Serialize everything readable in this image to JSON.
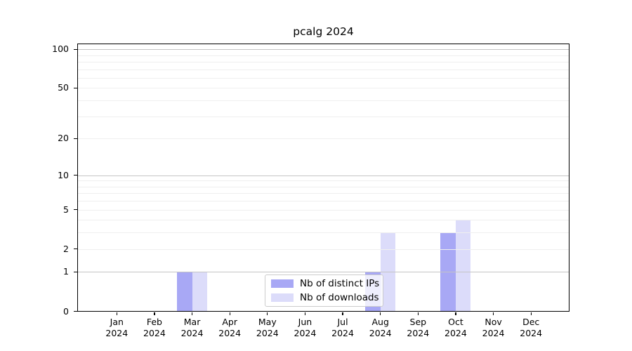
{
  "chart_data": {
    "type": "bar",
    "title": "pcalg 2024",
    "x_months": [
      "Jan",
      "Feb",
      "Mar",
      "Apr",
      "May",
      "Jun",
      "Jul",
      "Aug",
      "Sep",
      "Oct",
      "Nov",
      "Dec"
    ],
    "x_year": "2024",
    "y_ticks": [
      100,
      50,
      20,
      10,
      5,
      2,
      1,
      0
    ],
    "y_scale": "log1p",
    "ylim": [
      0,
      111
    ],
    "grid": true,
    "grid_major_values": [
      1,
      10,
      100
    ],
    "grid_minor_values": [
      2,
      3,
      4,
      5,
      6,
      7,
      8,
      9,
      20,
      30,
      40,
      50,
      60,
      70,
      80,
      90
    ],
    "series": [
      {
        "name": "Nb of distinct IPs",
        "color": "#a8a8f5",
        "values": [
          0,
          0,
          1,
          0,
          0,
          0,
          0,
          1,
          0,
          3,
          0,
          0
        ]
      },
      {
        "name": "Nb of downloads",
        "color": "#dcdcfa",
        "values": [
          0,
          0,
          1,
          0,
          0,
          0,
          0,
          3,
          0,
          4,
          0,
          0
        ]
      }
    ],
    "legend_position": "bottom-center",
    "colors": {
      "grid_major": "#c4c4c4",
      "grid_minor": "#efefef",
      "axis": "#000000",
      "text": "#000000",
      "legend_border": "#cccccc",
      "background": "#ffffff"
    }
  }
}
